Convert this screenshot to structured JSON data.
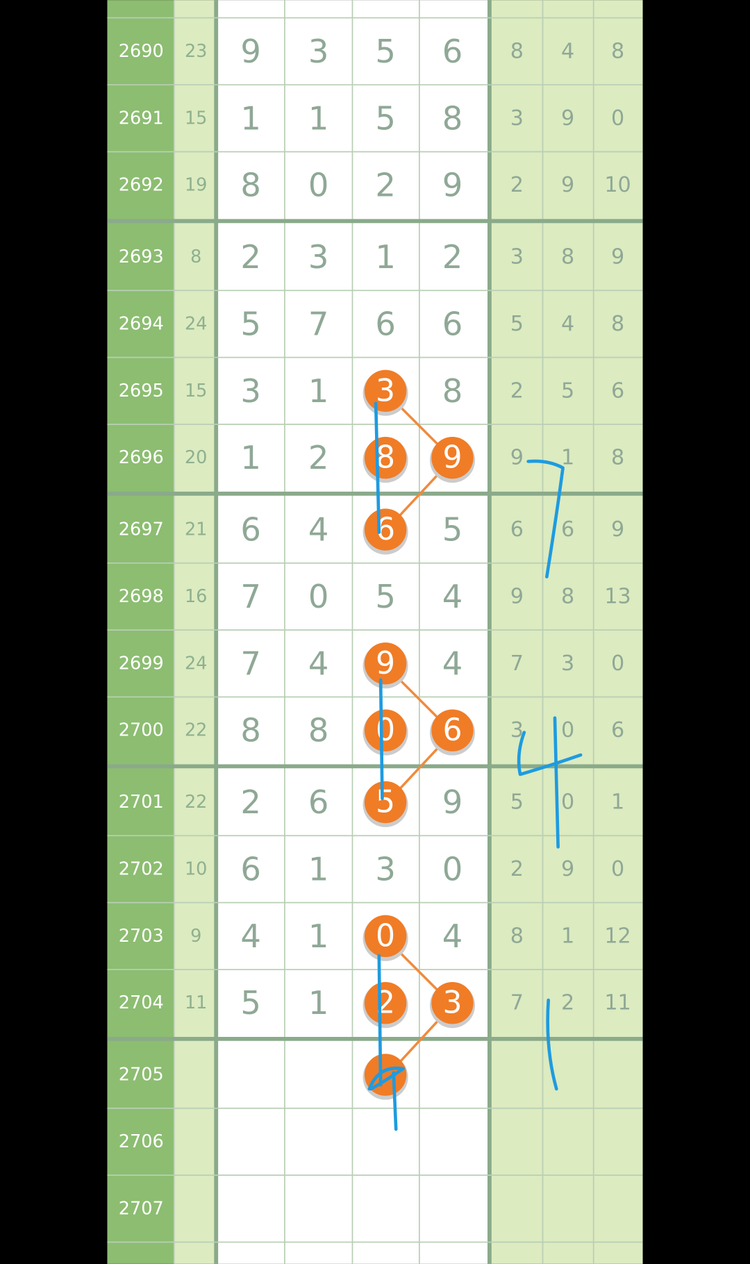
{
  "rows": [
    {
      "id": "2690",
      "sum": "23",
      "digits": [
        "9",
        "3",
        "5",
        "6"
      ],
      "extra": [
        "8",
        "4",
        "8"
      ],
      "highlight": []
    },
    {
      "id": "2691",
      "sum": "15",
      "digits": [
        "1",
        "1",
        "5",
        "8"
      ],
      "extra": [
        "3",
        "9",
        "0"
      ],
      "highlight": []
    },
    {
      "id": "2692",
      "sum": "19",
      "digits": [
        "8",
        "0",
        "2",
        "9"
      ],
      "extra": [
        "2",
        "9",
        "10"
      ],
      "highlight": []
    },
    {
      "id": "2693",
      "sum": "8",
      "digits": [
        "2",
        "3",
        "1",
        "2"
      ],
      "extra": [
        "3",
        "8",
        "9"
      ],
      "highlight": []
    },
    {
      "id": "2694",
      "sum": "24",
      "digits": [
        "5",
        "7",
        "6",
        "6"
      ],
      "extra": [
        "5",
        "4",
        "8"
      ],
      "highlight": []
    },
    {
      "id": "2695",
      "sum": "15",
      "digits": [
        "3",
        "1",
        "3",
        "8"
      ],
      "extra": [
        "2",
        "5",
        "6"
      ],
      "highlight": [
        2
      ]
    },
    {
      "id": "2696",
      "sum": "20",
      "digits": [
        "1",
        "2",
        "8",
        "9"
      ],
      "extra": [
        "9",
        "1",
        "8"
      ],
      "highlight": [
        2,
        3
      ]
    },
    {
      "id": "2697",
      "sum": "21",
      "digits": [
        "6",
        "4",
        "6",
        "5"
      ],
      "extra": [
        "6",
        "6",
        "9"
      ],
      "highlight": [
        2
      ]
    },
    {
      "id": "2698",
      "sum": "16",
      "digits": [
        "7",
        "0",
        "5",
        "4"
      ],
      "extra": [
        "9",
        "8",
        "13"
      ],
      "highlight": []
    },
    {
      "id": "2699",
      "sum": "24",
      "digits": [
        "7",
        "4",
        "9",
        "4"
      ],
      "extra": [
        "7",
        "3",
        "0"
      ],
      "highlight": [
        2
      ]
    },
    {
      "id": "2700",
      "sum": "22",
      "digits": [
        "8",
        "8",
        "0",
        "6"
      ],
      "extra": [
        "3",
        "0",
        "6"
      ],
      "highlight": [
        2,
        3
      ]
    },
    {
      "id": "2701",
      "sum": "22",
      "digits": [
        "2",
        "6",
        "5",
        "9"
      ],
      "extra": [
        "5",
        "0",
        "1"
      ],
      "highlight": [
        2
      ]
    },
    {
      "id": "2702",
      "sum": "10",
      "digits": [
        "6",
        "1",
        "3",
        "0"
      ],
      "extra": [
        "2",
        "9",
        "0"
      ],
      "highlight": []
    },
    {
      "id": "2703",
      "sum": "9",
      "digits": [
        "4",
        "1",
        "0",
        "4"
      ],
      "extra": [
        "8",
        "1",
        "12"
      ],
      "highlight": [
        2
      ]
    },
    {
      "id": "2704",
      "sum": "11",
      "digits": [
        "5",
        "1",
        "2",
        "3"
      ],
      "extra": [
        "7",
        "2",
        "11"
      ],
      "highlight": [
        2,
        3
      ]
    },
    {
      "id": "2705",
      "digits": [],
      "extra": [],
      "highlight": [
        2
      ]
    },
    {
      "id": "2706",
      "digits": [],
      "extra": [],
      "highlight": []
    },
    {
      "id": "2707",
      "digits": [],
      "extra": [],
      "highlight": []
    }
  ]
}
